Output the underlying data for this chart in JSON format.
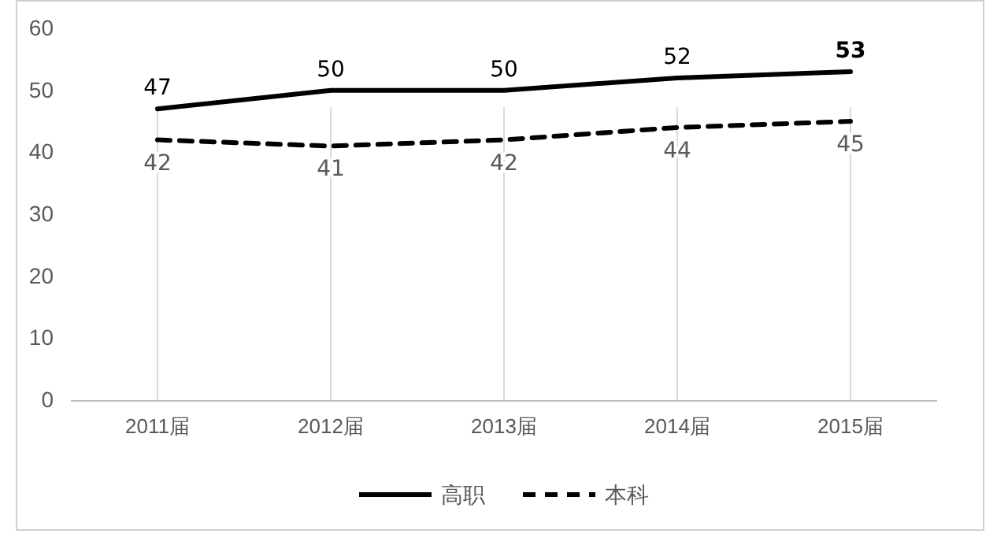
{
  "chart_data": {
    "type": "line",
    "categories": [
      "2011届",
      "2012届",
      "2013届",
      "2014届",
      "2015届"
    ],
    "series": [
      {
        "name": "高职",
        "color": "#000000",
        "line_style": "solid",
        "values": [
          47,
          50,
          50,
          52,
          53
        ]
      },
      {
        "name": "本科",
        "color": "#000000",
        "line_style": "dashed",
        "values": [
          42,
          41,
          42,
          44,
          45
        ]
      }
    ],
    "ylim": [
      0,
      60
    ],
    "yticks": [
      0,
      10,
      20,
      30,
      40,
      50,
      60
    ],
    "grid": "x",
    "legend": "bottom",
    "data_labels": true
  }
}
